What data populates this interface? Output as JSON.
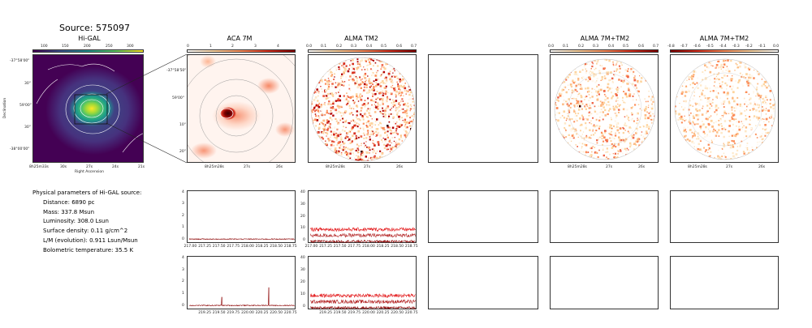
{
  "source_title": "Source: 575097",
  "panels": {
    "higal": "Hi-GAL",
    "aca7m": "ACA 7M",
    "almatm2": "ALMA TM2",
    "alma7mtm2_a": "ALMA 7M+TM2",
    "alma7mtm2_b": "ALMA 7M+TM2"
  },
  "higal_axes": {
    "xlabel": "Right Ascension",
    "ylabel": "Declination",
    "xticks": [
      "8h25m33s",
      "30s",
      "27s",
      "24s",
      "21s"
    ],
    "yticks": [
      "-37°58'00\"",
      "30\"",
      "59'00\"",
      "30\"",
      "-38°00'00\""
    ],
    "cbar_ticks": [
      "100",
      "150",
      "200",
      "250",
      "300"
    ]
  },
  "aca_axes": {
    "xticks": [
      "8h25m28s",
      "27s",
      "26s"
    ],
    "yticks": [
      "-37°58'50\"",
      "59'00\"",
      "10\"",
      "20\""
    ],
    "cbar_ticks": [
      "0",
      "1",
      "2",
      "3",
      "4"
    ]
  },
  "tm2_axes": {
    "xticks": [
      "8h25m28s",
      "27s",
      "26s"
    ],
    "cbar_ticks": [
      "0.0",
      "0.1",
      "0.2",
      "0.3",
      "0.4",
      "0.5",
      "0.6",
      "0.7"
    ]
  },
  "comb_a_axes": {
    "xticks": [
      "8h25m28s",
      "27s",
      "26s"
    ],
    "cbar_ticks": [
      "0.0",
      "0.1",
      "0.2",
      "0.3",
      "0.4",
      "0.5",
      "0.6",
      "0.7"
    ]
  },
  "comb_b_axes": {
    "xticks": [
      "8h25m28s",
      "27s",
      "26s"
    ],
    "cbar_ticks": [
      "-0.8",
      "-0.7",
      "-0.6",
      "-0.5",
      "-0.4",
      "-0.3",
      "-0.2",
      "-0.1",
      "0.0"
    ]
  },
  "params": {
    "heading": "Physical parameters of Hi-GAL source:",
    "lines": [
      "Distance: 6890 pc",
      "Mass: 337.8 Msun",
      "Luminosity: 308.0 Lsun",
      "Surface density: 0.11 g/cm^2",
      "L/M (evolution): 0.911 Lsun/Msun",
      "Bolometric temperature: 35.5 K"
    ]
  },
  "colors": {
    "viridis_dark": "#440154",
    "viridis_mid": "#21918c",
    "viridis_bright": "#fde725",
    "spectrum_dark": "#8b0000",
    "spectrum_red": "#e31a1c",
    "spectrum_mid": "#b22222"
  },
  "chart_data": [
    {
      "type": "line",
      "panel": "aca-spectrum-row1",
      "x_ticks": [
        "217.00",
        "217.25",
        "217.50",
        "217.75",
        "218.00",
        "218.25",
        "218.50",
        "218.75"
      ],
      "y_ticks": [
        "0",
        "1",
        "2",
        "3",
        "4"
      ],
      "xlim": [
        216.95,
        218.85
      ],
      "ylim": [
        -0.3,
        4.2
      ],
      "series": [
        {
          "baseline": 0.1,
          "noise": 0.04,
          "spikes": []
        }
      ]
    },
    {
      "type": "line",
      "panel": "tm2-spectrum-row1",
      "x_ticks": [
        "217.00",
        "217.25",
        "217.50",
        "217.75",
        "218.00",
        "218.25",
        "218.50",
        "218.75"
      ],
      "y_ticks": [
        "0",
        "10",
        "20",
        "30",
        "40"
      ],
      "xlim": [
        216.95,
        218.85
      ],
      "ylim": [
        -2,
        42
      ],
      "series": [
        {
          "baseline": 10,
          "noise": 1.5,
          "spikes": []
        },
        {
          "baseline": 5,
          "noise": 1.5,
          "spikes": []
        },
        {
          "baseline": 0,
          "noise": 1.0,
          "spikes": []
        }
      ]
    },
    {
      "type": "line",
      "panel": "aca-spectrum-row2",
      "x_ticks": [
        "219.25",
        "219.50",
        "219.75",
        "220.00",
        "220.25",
        "220.50",
        "220.75"
      ],
      "y_ticks": [
        "0",
        "1",
        "2",
        "3",
        "4"
      ],
      "xlim": [
        218.95,
        220.85
      ],
      "ylim": [
        -0.3,
        4.2
      ],
      "series": [
        {
          "baseline": 0.1,
          "noise": 0.04,
          "spikes": [
            [
              219.55,
              0.8
            ],
            [
              220.37,
              1.6
            ]
          ]
        }
      ]
    },
    {
      "type": "line",
      "panel": "tm2-spectrum-row2",
      "x_ticks": [
        "219.25",
        "219.50",
        "219.75",
        "220.00",
        "220.25",
        "220.50",
        "220.75"
      ],
      "y_ticks": [
        "0",
        "10",
        "20",
        "30",
        "40"
      ],
      "xlim": [
        218.95,
        220.85
      ],
      "ylim": [
        -2,
        42
      ],
      "series": [
        {
          "baseline": 10,
          "noise": 1.5,
          "spikes": []
        },
        {
          "baseline": 5,
          "noise": 1.5,
          "spikes": []
        },
        {
          "baseline": 0,
          "noise": 1.0,
          "spikes": []
        }
      ]
    }
  ]
}
